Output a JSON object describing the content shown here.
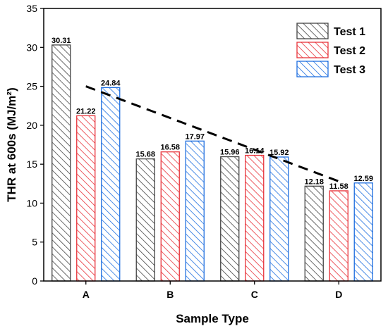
{
  "chart_data": {
    "type": "bar",
    "categories": [
      "A",
      "B",
      "C",
      "D"
    ],
    "series": [
      {
        "name": "Test 1",
        "values": [
          30.31,
          15.68,
          15.96,
          12.18
        ],
        "color": "#444444"
      },
      {
        "name": "Test 2",
        "values": [
          21.22,
          16.58,
          16.14,
          11.58
        ],
        "color": "#e8333a"
      },
      {
        "name": "Test 3",
        "values": [
          24.84,
          17.97,
          15.92,
          12.59
        ],
        "color": "#1f6fe0"
      }
    ],
    "xlabel": "Sample Type",
    "ylabel": "THR at 600s (MJ/m²)",
    "ylim": [
      0,
      35
    ],
    "yticks": [
      0,
      5,
      10,
      15,
      20,
      25,
      30,
      35
    ],
    "legend_position": "top-right",
    "grid": false,
    "bar_fill": "diagonal-hatch",
    "trend_line": {
      "style": "dashed",
      "color": "#000000",
      "from": {
        "category": "A",
        "y": 25.0
      },
      "to": {
        "category": "D",
        "y": 12.8
      }
    }
  }
}
